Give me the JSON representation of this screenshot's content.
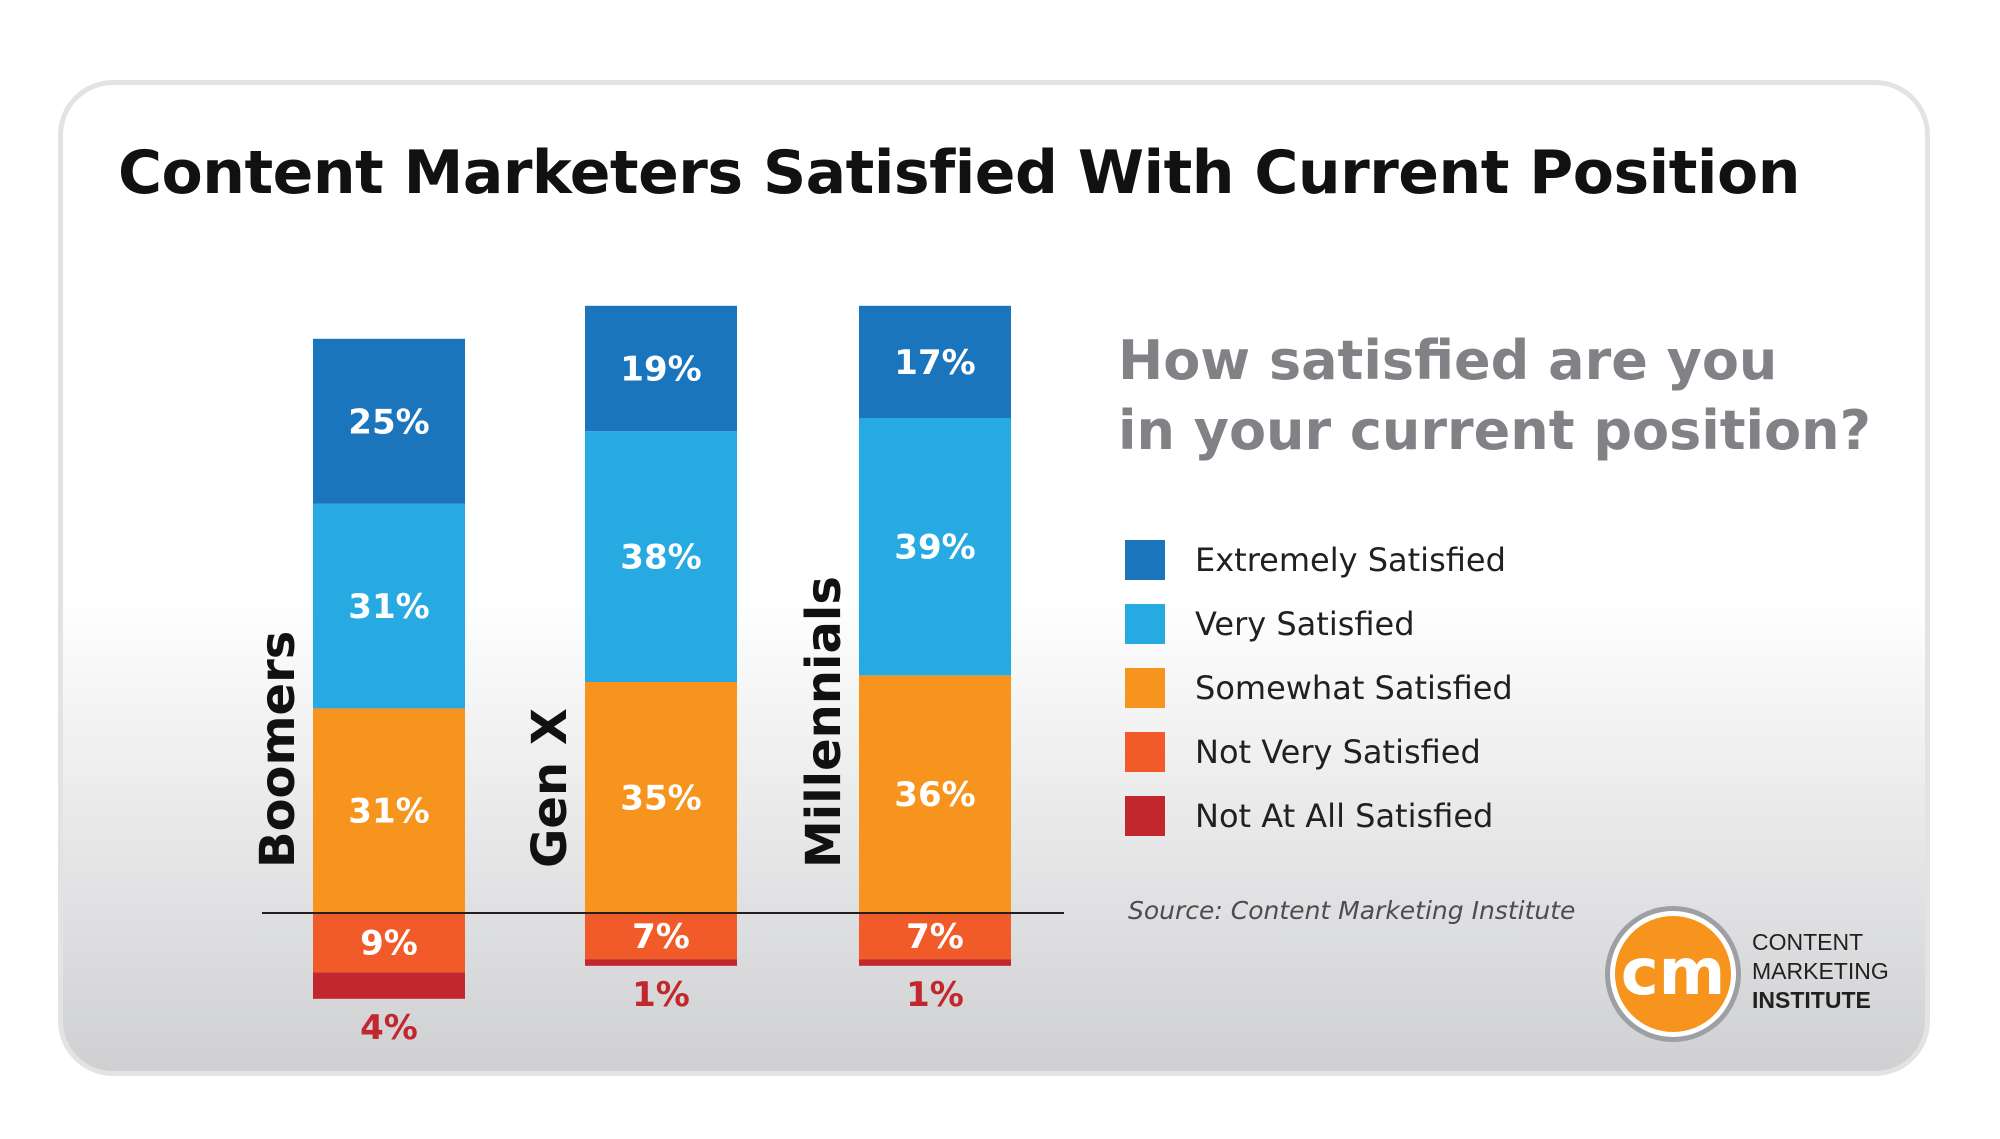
{
  "title": "Content Marketers Satisfied With Current Position",
  "question": {
    "line1": "How satisfied are you",
    "line2": "in your current position?"
  },
  "source": "Source: Content Marketing Institute",
  "logo": {
    "mark": "cm",
    "line1": "CONTENT",
    "line2": "MARKETING",
    "line3": "INSTITUTE",
    "ring_color": "#f7941d"
  },
  "colors": {
    "extremely": "#1b75bc",
    "very": "#27aae1",
    "somewhat": "#f7941d",
    "not_very": "#f15a29",
    "not_at_all": "#c1272d"
  },
  "chart_data": {
    "type": "bar",
    "stacked": true,
    "baseline_between": [
      "Somewhat Satisfied",
      "Not Very Satisfied"
    ],
    "categories": [
      "Boomers",
      "Gen X",
      "Millennials"
    ],
    "series": [
      {
        "name": "Extremely Satisfied",
        "color": "#1b75bc",
        "values": [
          25,
          19,
          17
        ],
        "labels": [
          "25%",
          "19%",
          "17%"
        ]
      },
      {
        "name": "Very Satisfied",
        "color": "#27aae1",
        "values": [
          31,
          38,
          39
        ],
        "labels": [
          "31%",
          "38%",
          "39%"
        ]
      },
      {
        "name": "Somewhat Satisfied",
        "color": "#f7941d",
        "values": [
          31,
          35,
          36
        ],
        "labels": [
          "31%",
          "35%",
          "36%"
        ]
      },
      {
        "name": "Not Very Satisfied",
        "color": "#f15a29",
        "values": [
          9,
          7,
          7
        ],
        "labels": [
          "9%",
          "7%",
          "7%"
        ]
      },
      {
        "name": "Not At All Satisfied",
        "color": "#c1272d",
        "values": [
          4,
          1,
          1
        ],
        "labels": [
          "4%",
          "1%",
          "1%"
        ]
      }
    ],
    "title": "Content Marketers Satisfied With Current Position",
    "xlabel": "",
    "ylabel": "",
    "legend_position": "right"
  }
}
